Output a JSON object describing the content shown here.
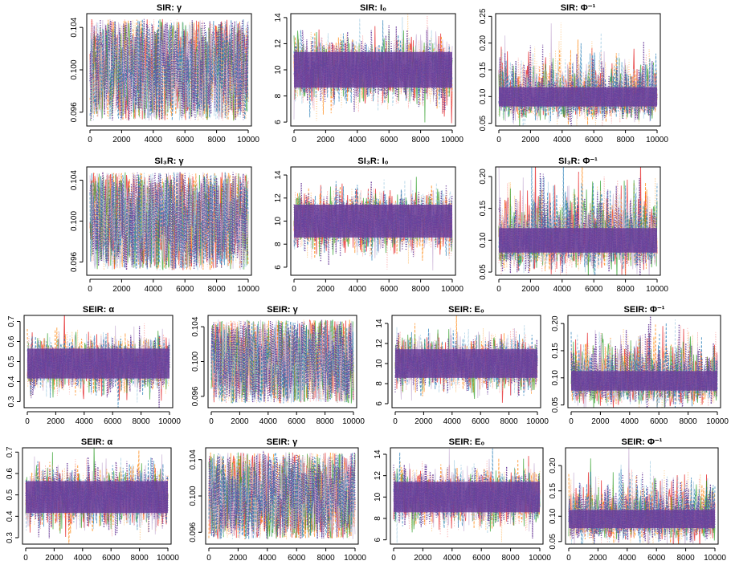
{
  "figure": {
    "description_free": true
  },
  "palette": [
    "#6a3d9a",
    "#e31a1c",
    "#ff7f00",
    "#fdbf6f",
    "#33a02c",
    "#a6cee3",
    "#fb9a99",
    "#cab2d6",
    "#1f78b4"
  ],
  "main_color": "#6a3d9a",
  "chart_data": [
    {
      "id": "p1",
      "type": "line",
      "title": "SIR: γ",
      "x_ticks": [
        "0",
        "2000",
        "4000",
        "6000",
        "8000",
        "10000"
      ],
      "y_ticks": [
        "0.096",
        "0.100",
        "0.104"
      ],
      "xlim": [
        0,
        10000
      ],
      "ylim": [
        0.0947,
        0.1053
      ],
      "y_tick_values": [
        0.096,
        0.1,
        0.104
      ],
      "trace": {
        "center": 0.1,
        "half_width": 0.0048,
        "uniform": true,
        "iterations": 10000,
        "chains": 9
      }
    },
    {
      "id": "p2",
      "type": "line",
      "title": "SIR: I₀",
      "x_ticks": [
        "0",
        "2000",
        "4000",
        "6000",
        "8000",
        "10000"
      ],
      "y_ticks": [
        "6",
        "8",
        "10",
        "12",
        "14"
      ],
      "xlim": [
        0,
        10000
      ],
      "ylim": [
        5.7,
        14.3
      ],
      "y_tick_values": [
        6,
        8,
        10,
        12,
        14
      ],
      "trace": {
        "center": 10.0,
        "half_width": 2.2,
        "uniform": false,
        "iterations": 10000,
        "chains": 9
      }
    },
    {
      "id": "p3",
      "type": "line",
      "title": "SIR: Φ⁻¹",
      "x_ticks": [
        "0",
        "2000",
        "4000",
        "6000",
        "8000",
        "10000"
      ],
      "y_ticks": [
        "0.05",
        "0.10",
        "0.15",
        "0.20",
        "0.25"
      ],
      "xlim": [
        0,
        10000
      ],
      "ylim": [
        0.045,
        0.255
      ],
      "y_tick_values": [
        0.05,
        0.1,
        0.15,
        0.2,
        0.25
      ],
      "trace": {
        "center": 0.095,
        "half_width": 0.03,
        "uniform": false,
        "skew": true,
        "iterations": 10000,
        "chains": 9
      }
    },
    {
      "id": "p4",
      "type": "line",
      "title": "SI₃R: γ",
      "x_ticks": [
        "0",
        "2000",
        "4000",
        "6000",
        "8000",
        "10000"
      ],
      "y_ticks": [
        "0.096",
        "0.100",
        "0.104"
      ],
      "xlim": [
        0,
        10000
      ],
      "ylim": [
        0.0947,
        0.1053
      ],
      "y_tick_values": [
        0.096,
        0.1,
        0.104
      ],
      "trace": {
        "center": 0.1,
        "half_width": 0.0048,
        "uniform": true,
        "iterations": 10000,
        "chains": 9
      }
    },
    {
      "id": "p5",
      "type": "line",
      "title": "SI₃R: I₀",
      "x_ticks": [
        "0",
        "2000",
        "4000",
        "6000",
        "8000",
        "10000"
      ],
      "y_ticks": [
        "6",
        "8",
        "10",
        "12",
        "14"
      ],
      "xlim": [
        0,
        10000
      ],
      "ylim": [
        5.3,
        14.7
      ],
      "y_tick_values": [
        6,
        8,
        10,
        12,
        14
      ],
      "trace": {
        "center": 10.0,
        "half_width": 2.3,
        "uniform": false,
        "iterations": 10000,
        "chains": 9
      }
    },
    {
      "id": "p6",
      "type": "line",
      "title": "SI₃R: Φ⁻¹",
      "x_ticks": [
        "0",
        "2000",
        "4000",
        "6000",
        "8000",
        "10000"
      ],
      "y_ticks": [
        "0.05",
        "0.10",
        "0.15",
        "0.20"
      ],
      "xlim": [
        0,
        10000
      ],
      "ylim": [
        0.045,
        0.215
      ],
      "y_tick_values": [
        0.05,
        0.1,
        0.15,
        0.2
      ],
      "trace": {
        "center": 0.095,
        "half_width": 0.032,
        "uniform": false,
        "skew": true,
        "iterations": 10000,
        "chains": 9
      }
    },
    {
      "id": "p7",
      "type": "line",
      "title": "SEIR: α",
      "x_ticks": [
        "0",
        "2000",
        "4000",
        "6000",
        "8000",
        "10000"
      ],
      "y_ticks": [
        "0.3",
        "0.4",
        "0.5",
        "0.6",
        "0.7"
      ],
      "xlim": [
        0,
        10000
      ],
      "ylim": [
        0.27,
        0.73
      ],
      "y_tick_values": [
        0.3,
        0.4,
        0.5,
        0.6,
        0.7
      ],
      "trace": {
        "center": 0.49,
        "half_width": 0.12,
        "uniform": false,
        "iterations": 10000,
        "chains": 9
      }
    },
    {
      "id": "p8",
      "type": "line",
      "title": "SEIR: γ",
      "x_ticks": [
        "0",
        "2000",
        "4000",
        "6000",
        "8000",
        "10000"
      ],
      "y_ticks": [
        "0.096",
        "0.100",
        "0.104"
      ],
      "xlim": [
        0,
        10000
      ],
      "ylim": [
        0.0947,
        0.1053
      ],
      "y_tick_values": [
        0.096,
        0.1,
        0.104
      ],
      "trace": {
        "center": 0.1,
        "half_width": 0.0048,
        "uniform": true,
        "iterations": 10000,
        "chains": 9
      }
    },
    {
      "id": "p9",
      "type": "line",
      "title": "SEIR: E₀",
      "x_ticks": [
        "0",
        "2000",
        "4000",
        "6000",
        "8000",
        "10000"
      ],
      "y_ticks": [
        "6",
        "8",
        "10",
        "12",
        "14"
      ],
      "xlim": [
        0,
        10000
      ],
      "ylim": [
        5.6,
        14.8
      ],
      "y_tick_values": [
        6,
        8,
        10,
        12,
        14
      ],
      "trace": {
        "center": 10.0,
        "half_width": 2.3,
        "uniform": false,
        "iterations": 10000,
        "chains": 9
      }
    },
    {
      "id": "p10",
      "type": "line",
      "title": "SEIR: Φ⁻¹",
      "x_ticks": [
        "0",
        "2000",
        "4000",
        "6000",
        "8000",
        "10000"
      ],
      "y_ticks": [
        "0.05",
        "0.10",
        "0.15",
        "0.20"
      ],
      "xlim": [
        0,
        10000
      ],
      "ylim": [
        0.045,
        0.215
      ],
      "y_tick_values": [
        0.05,
        0.1,
        0.15,
        0.2
      ],
      "trace": {
        "center": 0.09,
        "half_width": 0.03,
        "uniform": false,
        "skew": true,
        "iterations": 10000,
        "chains": 9
      }
    },
    {
      "id": "p11",
      "type": "line",
      "title": "SEIR: α",
      "x_ticks": [
        "0",
        "2000",
        "4000",
        "6000",
        "8000",
        "10000"
      ],
      "y_ticks": [
        "0.3",
        "0.4",
        "0.5",
        "0.6",
        "0.7"
      ],
      "xlim": [
        0,
        10000
      ],
      "ylim": [
        0.27,
        0.72
      ],
      "y_tick_values": [
        0.3,
        0.4,
        0.5,
        0.6,
        0.7
      ],
      "trace": {
        "center": 0.49,
        "half_width": 0.12,
        "uniform": false,
        "iterations": 10000,
        "chains": 9
      }
    },
    {
      "id": "p12",
      "type": "line",
      "title": "SEIR: γ",
      "x_ticks": [
        "0",
        "2000",
        "4000",
        "6000",
        "8000",
        "10000"
      ],
      "y_ticks": [
        "0.096",
        "0.100",
        "0.104"
      ],
      "xlim": [
        0,
        10000
      ],
      "ylim": [
        0.0947,
        0.1053
      ],
      "y_tick_values": [
        0.096,
        0.1,
        0.104
      ],
      "trace": {
        "center": 0.1,
        "half_width": 0.0048,
        "uniform": true,
        "iterations": 10000,
        "chains": 9
      }
    },
    {
      "id": "p13",
      "type": "line",
      "title": "SEIR: E₀",
      "x_ticks": [
        "0",
        "2000",
        "4000",
        "6000",
        "8000",
        "10000"
      ],
      "y_ticks": [
        "6",
        "8",
        "10",
        "12",
        "14"
      ],
      "xlim": [
        0,
        10000
      ],
      "ylim": [
        5.6,
        14.6
      ],
      "y_tick_values": [
        6,
        8,
        10,
        12,
        14
      ],
      "trace": {
        "center": 10.0,
        "half_width": 2.3,
        "uniform": false,
        "iterations": 10000,
        "chains": 9
      }
    },
    {
      "id": "p14",
      "type": "line",
      "title": "SEIR: Φ⁻¹",
      "x_ticks": [
        "0",
        "2000",
        "4000",
        "6000",
        "8000",
        "10000"
      ],
      "y_ticks": [
        "0.05",
        "0.10",
        "0.15",
        "0.20"
      ],
      "xlim": [
        0,
        10000
      ],
      "ylim": [
        0.045,
        0.235
      ],
      "y_tick_values": [
        0.05,
        0.1,
        0.15,
        0.2
      ],
      "trace": {
        "center": 0.09,
        "half_width": 0.03,
        "uniform": false,
        "skew": true,
        "iterations": 10000,
        "chains": 9
      }
    }
  ]
}
